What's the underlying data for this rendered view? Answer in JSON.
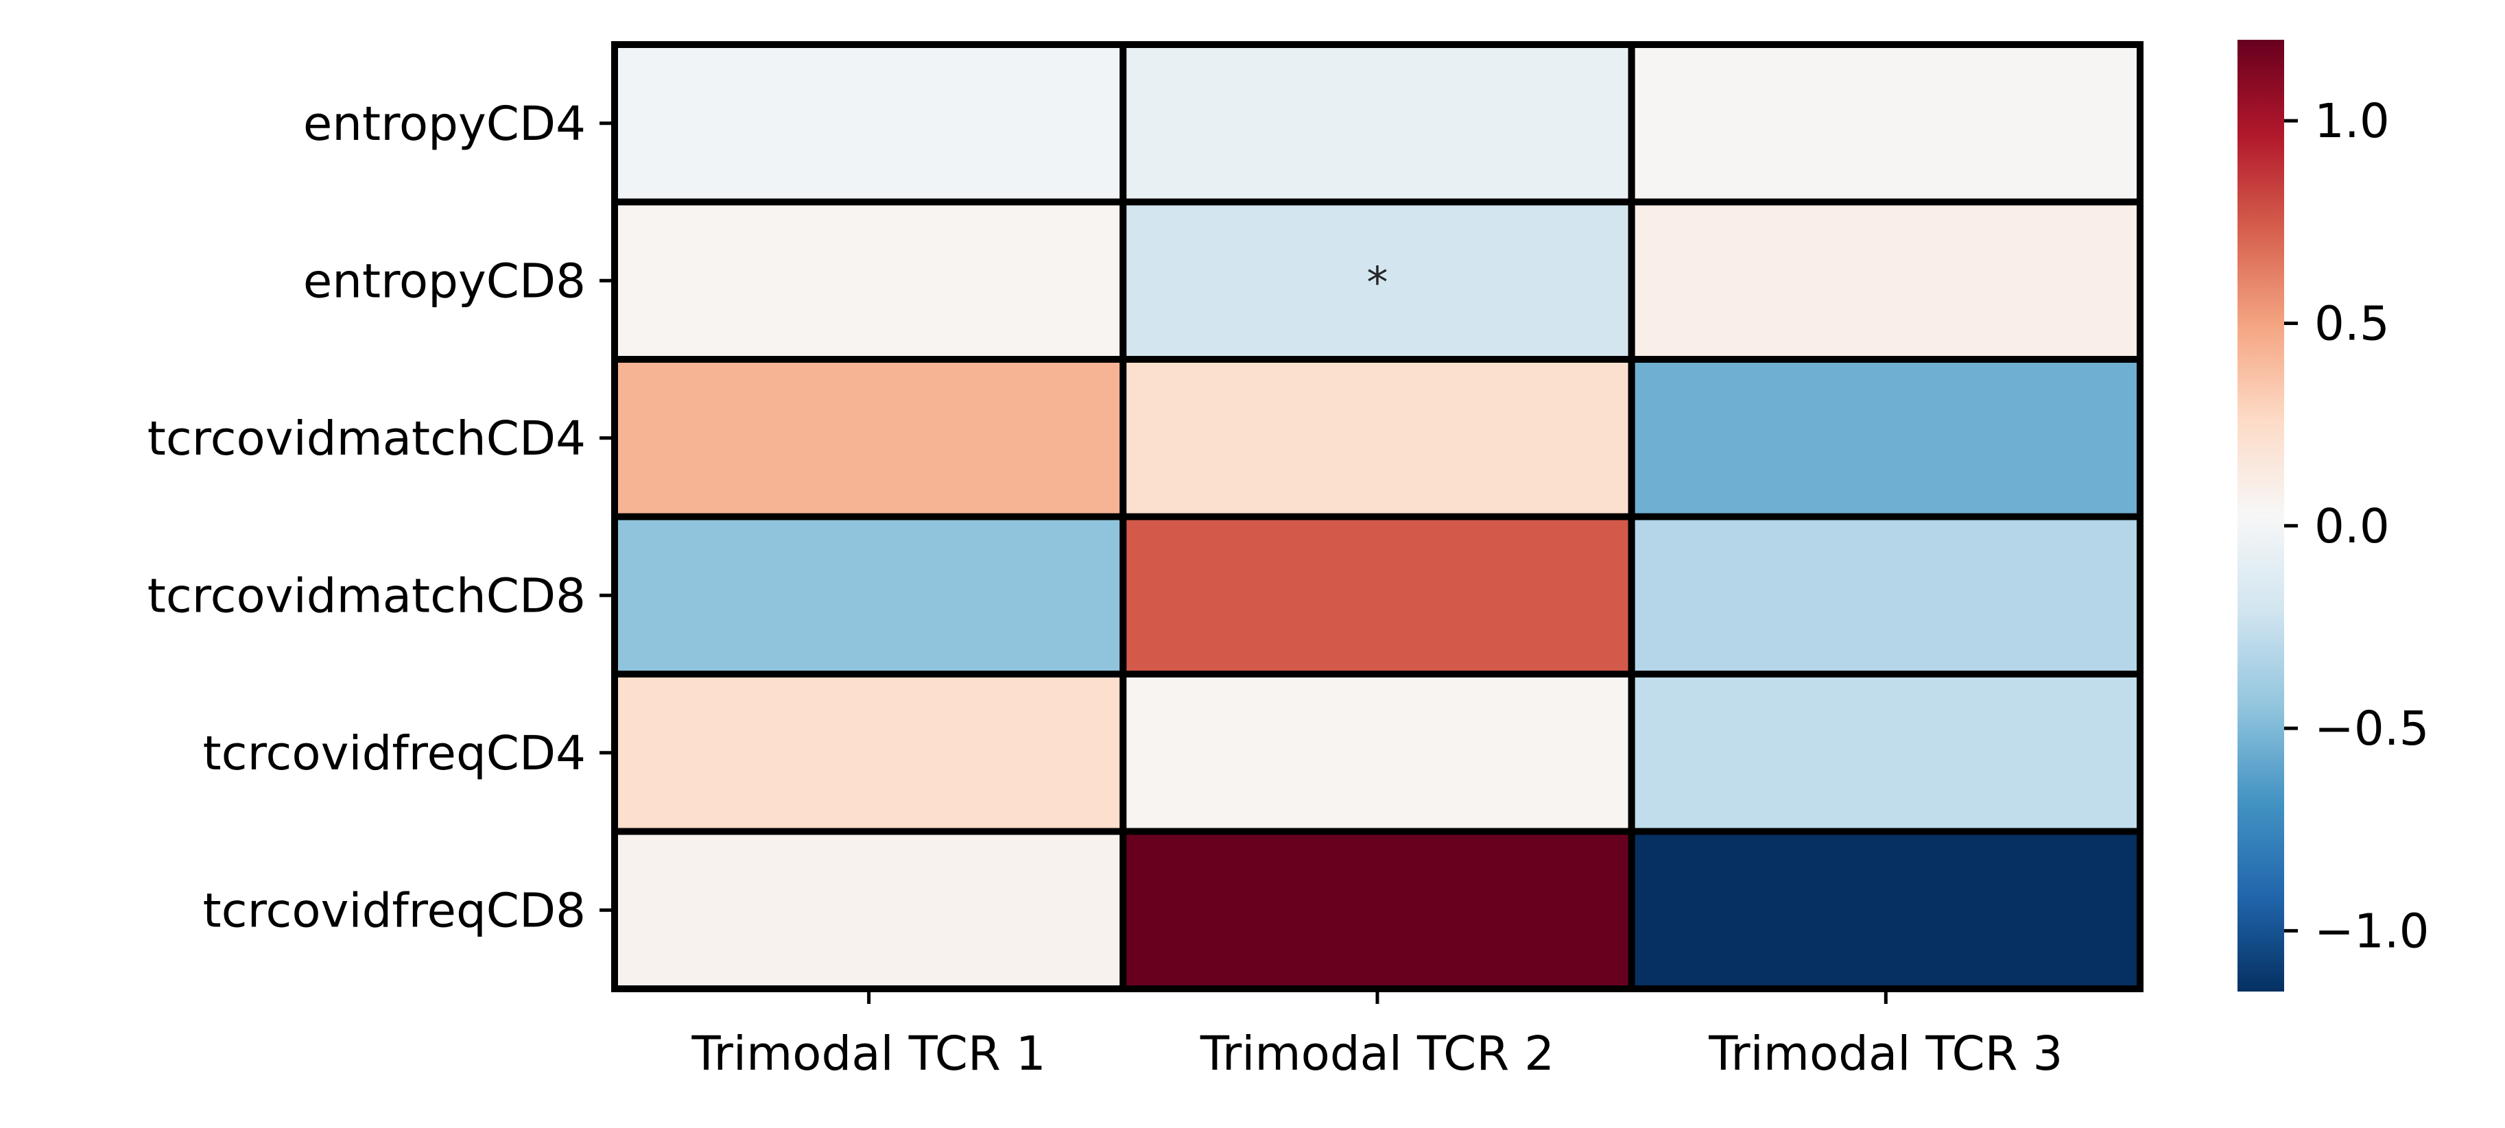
{
  "chart_data": {
    "type": "heatmap",
    "title": "",
    "xlabel": "",
    "ylabel": "",
    "rows": [
      "entropyCD4",
      "entropyCD8",
      "tcrcovidmatchCD4",
      "tcrcovidmatchCD8",
      "tcrcovidfreqCD4",
      "tcrcovidfreqCD8"
    ],
    "columns": [
      "Trimodal TCR 1",
      "Trimodal TCR 2",
      "Trimodal TCR 3"
    ],
    "values": [
      [
        -0.02,
        -0.06,
        0.04
      ],
      [
        0.05,
        -0.2,
        0.1
      ],
      [
        0.43,
        0.22,
        -0.55
      ],
      [
        -0.45,
        0.75,
        -0.32
      ],
      [
        0.23,
        0.05,
        -0.27
      ],
      [
        0.07,
        1.2,
        -1.15
      ]
    ],
    "annotations": [
      {
        "row": 1,
        "col": 1,
        "text": "*"
      }
    ],
    "colormap": "RdBu_r",
    "vmin": -1.15,
    "vmax": 1.2,
    "colorbar": {
      "ticks": [
        -1.0,
        -0.5,
        0.0,
        0.5,
        1.0
      ],
      "tick_labels": [
        "−1.0",
        "−0.5",
        "0.0",
        "0.5",
        "1.0"
      ]
    },
    "cell_border_color": "#000000",
    "colorbar_position": "right"
  }
}
